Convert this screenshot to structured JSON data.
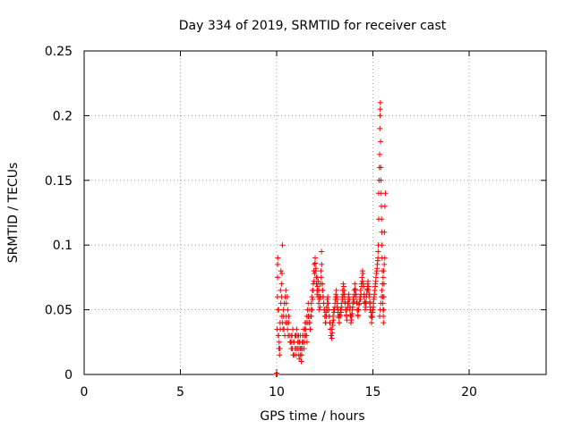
{
  "chart_data": {
    "type": "scatter",
    "title": "Day 334 of 2019, SRMTID for receiver cast",
    "xlabel": "GPS time / hours",
    "ylabel": "SRMTID / TECUs",
    "xlim": [
      0,
      24
    ],
    "ylim": [
      0,
      0.25
    ],
    "xticks": [
      0,
      5,
      10,
      15,
      20
    ],
    "yticks": [
      0,
      0.05,
      0.1,
      0.15,
      0.2,
      0.25
    ],
    "xtick_labels": [
      "0",
      "5",
      "10",
      "15",
      "20"
    ],
    "ytick_labels": [
      "0",
      "0.05",
      "0.1",
      "0.15",
      "0.2",
      "0.25"
    ],
    "grid": true,
    "marker": "+",
    "color": "#ff0000",
    "series": [
      {
        "name": "SRMTID",
        "x": [
          9.98,
          9.99,
          10.0,
          10.0,
          10.01,
          10.02,
          10.02,
          10.04,
          10.05,
          10.06,
          10.08,
          10.1,
          10.12,
          10.15,
          10.18,
          10.2,
          10.22,
          10.25,
          10.27,
          10.3,
          10.05,
          10.07,
          10.1,
          10.13,
          10.16,
          10.19,
          10.22,
          10.26,
          10.28,
          10.31,
          10.33,
          10.36,
          10.4,
          10.44,
          10.48,
          10.5,
          10.53,
          10.57,
          10.6,
          10.63,
          10.35,
          10.38,
          10.42,
          10.46,
          10.5,
          10.55,
          10.58,
          10.62,
          10.66,
          10.7,
          10.72,
          10.76,
          10.8,
          10.84,
          10.88,
          10.92,
          10.96,
          11.0,
          11.04,
          11.08,
          10.75,
          10.78,
          10.82,
          10.86,
          10.9,
          10.95,
          10.98,
          11.02,
          11.06,
          11.1,
          11.12,
          11.15,
          11.18,
          11.2,
          11.23,
          11.26,
          11.3,
          11.33,
          11.36,
          11.4,
          11.14,
          11.17,
          11.21,
          11.24,
          11.28,
          11.32,
          11.35,
          11.38,
          11.42,
          11.45,
          11.45,
          11.48,
          11.52,
          11.55,
          11.58,
          11.62,
          11.65,
          11.68,
          11.72,
          11.75,
          11.47,
          11.5,
          11.54,
          11.57,
          11.6,
          11.64,
          11.67,
          11.7,
          11.74,
          11.77,
          11.78,
          11.8,
          11.83,
          11.86,
          11.9,
          11.93,
          11.96,
          12.0,
          12.03,
          12.06,
          11.8,
          11.84,
          11.87,
          11.9,
          11.94,
          11.97,
          12.0,
          12.04,
          12.07,
          12.1,
          12.08,
          12.1,
          12.12,
          12.15,
          12.18,
          12.2,
          12.23,
          12.26,
          12.3,
          12.33,
          12.1,
          12.13,
          12.16,
          12.19,
          12.22,
          12.25,
          12.28,
          12.31,
          12.34,
          12.37,
          12.36,
          12.39,
          12.42,
          12.45,
          12.48,
          12.52,
          12.55,
          12.58,
          12.62,
          12.65,
          12.38,
          12.41,
          12.44,
          12.47,
          12.5,
          12.53,
          12.56,
          12.6,
          12.63,
          12.66,
          12.68,
          12.71,
          12.74,
          12.77,
          12.8,
          12.84,
          12.87,
          12.9,
          12.93,
          12.96,
          12.7,
          12.73,
          12.76,
          12.79,
          12.82,
          12.86,
          12.89,
          12.92,
          12.95,
          12.98,
          13.0,
          13.03,
          13.06,
          13.1,
          13.13,
          13.16,
          13.2,
          13.23,
          13.26,
          13.3,
          13.02,
          13.05,
          13.08,
          13.12,
          13.15,
          13.18,
          13.22,
          13.25,
          13.28,
          13.32,
          13.33,
          13.36,
          13.4,
          13.43,
          13.46,
          13.5,
          13.53,
          13.56,
          13.6,
          13.63,
          13.35,
          13.38,
          13.42,
          13.45,
          13.48,
          13.52,
          13.55,
          13.58,
          13.62,
          13.65,
          13.66,
          13.7,
          13.73,
          13.76,
          13.8,
          13.83,
          13.86,
          13.9,
          13.93,
          13.96,
          13.68,
          13.72,
          13.75,
          13.78,
          13.82,
          13.85,
          13.88,
          13.92,
          13.95,
          13.98,
          14.0,
          14.03,
          14.06,
          14.1,
          14.13,
          14.16,
          14.2,
          14.23,
          14.26,
          14.3,
          14.02,
          14.05,
          14.08,
          14.12,
          14.15,
          14.18,
          14.22,
          14.25,
          14.28,
          14.32,
          14.33,
          14.36,
          14.4,
          14.43,
          14.46,
          14.5,
          14.53,
          14.56,
          14.6,
          14.63,
          14.35,
          14.38,
          14.42,
          14.45,
          14.48,
          14.52,
          14.55,
          14.58,
          14.62,
          14.65,
          14.66,
          14.7,
          14.73,
          14.76,
          14.8,
          14.83,
          14.86,
          14.9,
          14.93,
          14.96,
          14.68,
          14.72,
          14.75,
          14.78,
          14.82,
          14.85,
          14.88,
          14.92,
          14.95,
          14.98,
          15.0,
          15.03,
          15.06,
          15.1,
          15.13,
          15.16,
          15.2,
          15.23,
          15.26,
          15.28,
          15.02,
          15.05,
          15.08,
          15.12,
          15.15,
          15.18,
          15.22,
          15.25,
          15.27,
          15.3,
          15.3,
          15.32,
          15.34,
          15.35,
          15.36,
          15.37,
          15.38,
          15.39,
          15.4,
          15.41,
          15.42,
          15.43,
          15.44,
          15.45,
          15.46,
          15.47,
          15.48,
          15.49,
          15.5,
          15.51,
          15.52,
          15.53,
          15.54,
          15.55,
          15.56,
          15.57,
          15.58,
          15.6,
          15.62,
          15.65,
          15.35,
          15.38,
          15.41,
          15.44,
          15.47,
          15.5,
          15.53,
          15.56,
          15.59,
          15.62
        ],
        "y": [
          0.0,
          0.0,
          0.0,
          0.001,
          0.0,
          0.0,
          0.035,
          0.06,
          0.085,
          0.09,
          0.03,
          0.05,
          0.02,
          0.015,
          0.04,
          0.065,
          0.08,
          0.06,
          0.045,
          0.1,
          0.075,
          0.05,
          0.03,
          0.025,
          0.02,
          0.035,
          0.055,
          0.07,
          0.078,
          0.04,
          0.035,
          0.045,
          0.055,
          0.06,
          0.065,
          0.045,
          0.04,
          0.035,
          0.03,
          0.045,
          0.05,
          0.035,
          0.03,
          0.04,
          0.055,
          0.06,
          0.05,
          0.04,
          0.03,
          0.025,
          0.025,
          0.02,
          0.03,
          0.035,
          0.025,
          0.015,
          0.02,
          0.03,
          0.035,
          0.03,
          0.03,
          0.025,
          0.02,
          0.015,
          0.025,
          0.03,
          0.02,
          0.015,
          0.02,
          0.025,
          0.02,
          0.015,
          0.012,
          0.025,
          0.03,
          0.02,
          0.015,
          0.025,
          0.03,
          0.035,
          0.03,
          0.025,
          0.02,
          0.015,
          0.01,
          0.02,
          0.03,
          0.025,
          0.02,
          0.025,
          0.03,
          0.04,
          0.035,
          0.03,
          0.025,
          0.04,
          0.045,
          0.05,
          0.04,
          0.035,
          0.035,
          0.03,
          0.04,
          0.045,
          0.05,
          0.055,
          0.045,
          0.04,
          0.035,
          0.045,
          0.05,
          0.055,
          0.06,
          0.065,
          0.07,
          0.08,
          0.085,
          0.09,
          0.08,
          0.075,
          0.045,
          0.05,
          0.058,
          0.065,
          0.072,
          0.078,
          0.086,
          0.082,
          0.07,
          0.065,
          0.07,
          0.075,
          0.065,
          0.06,
          0.055,
          0.05,
          0.06,
          0.07,
          0.08,
          0.095,
          0.062,
          0.068,
          0.072,
          0.065,
          0.058,
          0.052,
          0.06,
          0.075,
          0.085,
          0.07,
          0.07,
          0.065,
          0.06,
          0.055,
          0.05,
          0.045,
          0.04,
          0.045,
          0.05,
          0.055,
          0.065,
          0.06,
          0.055,
          0.05,
          0.045,
          0.04,
          0.048,
          0.052,
          0.058,
          0.06,
          0.055,
          0.05,
          0.045,
          0.04,
          0.035,
          0.03,
          0.035,
          0.04,
          0.045,
          0.05,
          0.05,
          0.045,
          0.04,
          0.035,
          0.03,
          0.028,
          0.032,
          0.038,
          0.042,
          0.048,
          0.05,
          0.055,
          0.06,
          0.065,
          0.06,
          0.055,
          0.05,
          0.045,
          0.04,
          0.045,
          0.052,
          0.058,
          0.062,
          0.058,
          0.052,
          0.048,
          0.044,
          0.04,
          0.046,
          0.05,
          0.05,
          0.055,
          0.06,
          0.065,
          0.07,
          0.065,
          0.06,
          0.055,
          0.05,
          0.045,
          0.048,
          0.052,
          0.058,
          0.062,
          0.068,
          0.062,
          0.056,
          0.05,
          0.046,
          0.042,
          0.05,
          0.055,
          0.06,
          0.055,
          0.05,
          0.045,
          0.04,
          0.045,
          0.05,
          0.055,
          0.052,
          0.058,
          0.062,
          0.058,
          0.052,
          0.046,
          0.042,
          0.047,
          0.052,
          0.058,
          0.06,
          0.065,
          0.07,
          0.065,
          0.06,
          0.055,
          0.05,
          0.045,
          0.05,
          0.055,
          0.056,
          0.062,
          0.066,
          0.062,
          0.056,
          0.05,
          0.046,
          0.05,
          0.054,
          0.058,
          0.06,
          0.065,
          0.07,
          0.075,
          0.08,
          0.07,
          0.06,
          0.055,
          0.05,
          0.055,
          0.058,
          0.062,
          0.068,
          0.072,
          0.078,
          0.068,
          0.062,
          0.056,
          0.052,
          0.056,
          0.06,
          0.065,
          0.07,
          0.065,
          0.06,
          0.055,
          0.05,
          0.045,
          0.04,
          0.045,
          0.062,
          0.066,
          0.072,
          0.068,
          0.062,
          0.056,
          0.052,
          0.048,
          0.044,
          0.048,
          0.05,
          0.055,
          0.06,
          0.065,
          0.07,
          0.075,
          0.08,
          0.085,
          0.09,
          0.1,
          0.052,
          0.058,
          0.062,
          0.068,
          0.072,
          0.078,
          0.082,
          0.088,
          0.095,
          0.12,
          0.14,
          0.15,
          0.16,
          0.17,
          0.19,
          0.2,
          0.205,
          0.21,
          0.18,
          0.16,
          0.15,
          0.14,
          0.13,
          0.12,
          0.11,
          0.1,
          0.09,
          0.08,
          0.07,
          0.06,
          0.055,
          0.05,
          0.045,
          0.04,
          0.05,
          0.06,
          0.07,
          0.11,
          0.13,
          0.14,
          0.045,
          0.05,
          0.055,
          0.06,
          0.065,
          0.07,
          0.075,
          0.08,
          0.085,
          0.09
        ]
      }
    ]
  }
}
